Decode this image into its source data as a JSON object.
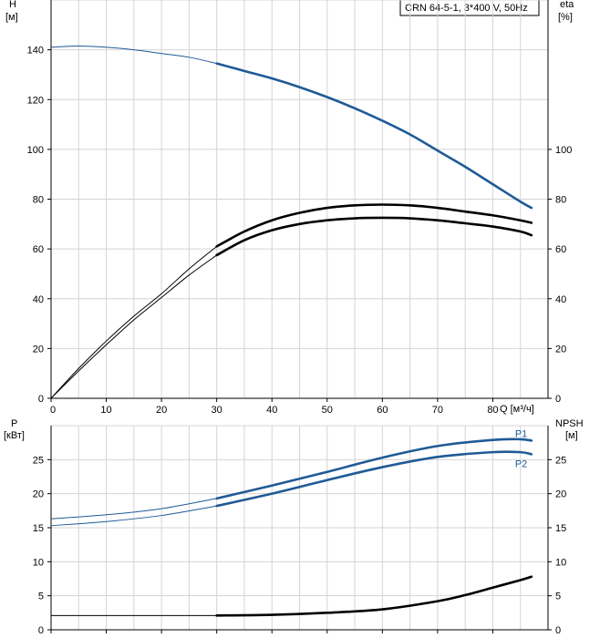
{
  "chart_data": [
    {
      "type": "line",
      "panel": "head-efficiency",
      "title": "CRN 64-5-1, 3*400 V, 50Hz",
      "ylabel_left": [
        "H",
        "[м]"
      ],
      "ylabel_right": [
        "eta",
        "[%]"
      ],
      "xlabel": "Q [м³/ч]",
      "xlim": [
        0,
        90
      ],
      "ylim": [
        0,
        160
      ],
      "x_ticks": [
        0,
        10,
        20,
        30,
        40,
        50,
        60,
        70,
        80
      ],
      "y_ticks_left": [
        0,
        20,
        40,
        60,
        80,
        100,
        120,
        140
      ],
      "y_ticks_right": [
        0,
        20,
        40,
        60,
        80,
        100
      ],
      "grid": true,
      "series": [
        {
          "role": "head",
          "color": "#1f5a96",
          "x": [
            0,
            5,
            10,
            15,
            20,
            25,
            30,
            35,
            40,
            45,
            50,
            55,
            60,
            65,
            70,
            75,
            80,
            85,
            87
          ],
          "y": [
            141,
            141.5,
            141,
            140,
            138.5,
            137,
            134.5,
            131.5,
            128.5,
            125,
            121,
            116.5,
            111.5,
            106,
            99.5,
            93,
            86,
            79,
            76.5
          ],
          "emphasized_from": 30
        },
        {
          "role": "efficiency-upper",
          "color": "#000000",
          "x": [
            0,
            5,
            10,
            15,
            20,
            25,
            30,
            35,
            40,
            45,
            50,
            55,
            60,
            65,
            70,
            75,
            80,
            85,
            87
          ],
          "y": [
            0,
            12,
            23,
            33,
            42,
            52,
            61,
            67,
            71.5,
            74.5,
            76.5,
            77.5,
            77.8,
            77.5,
            76.5,
            75,
            73.5,
            71.5,
            70.5
          ],
          "emphasized_from": 30
        },
        {
          "role": "efficiency",
          "color": "#000000",
          "x": [
            0,
            5,
            10,
            15,
            20,
            25,
            30,
            35,
            40,
            45,
            50,
            55,
            60,
            65,
            70,
            75,
            80,
            85,
            87
          ],
          "y": [
            0,
            11,
            21.5,
            31.5,
            40.5,
            49.5,
            57.5,
            63.5,
            67.5,
            70,
            71.5,
            72.3,
            72.5,
            72.3,
            71.5,
            70.3,
            69,
            67,
            65.5
          ],
          "emphasized_from": 30
        }
      ]
    },
    {
      "type": "line",
      "panel": "power-npsh",
      "ylabel_left": [
        "P",
        "[кВт]"
      ],
      "ylabel_right": [
        "NPSH",
        "[м]"
      ],
      "xlim": [
        0,
        90
      ],
      "ylim": [
        0,
        30
      ],
      "y_ticks_left": [
        0,
        5,
        10,
        15,
        20,
        25
      ],
      "y_ticks_right": [
        0,
        5,
        10,
        15,
        20,
        25
      ],
      "grid": true,
      "series": [
        {
          "name": "P1",
          "color": "#1f5a96",
          "x": [
            0,
            10,
            20,
            30,
            40,
            50,
            60,
            70,
            80,
            85,
            87
          ],
          "y": [
            16.3,
            16.9,
            17.8,
            19.3,
            21.2,
            23.2,
            25.3,
            27.0,
            27.9,
            28.0,
            27.8
          ],
          "emphasized_from": 30
        },
        {
          "name": "P2",
          "color": "#1f5a96",
          "x": [
            0,
            10,
            20,
            30,
            40,
            50,
            60,
            70,
            80,
            85,
            87
          ],
          "y": [
            15.3,
            15.9,
            16.8,
            18.2,
            20.0,
            22.0,
            23.9,
            25.4,
            26.1,
            26.1,
            25.8
          ],
          "emphasized_from": 30
        },
        {
          "role": "npsh",
          "color": "#000000",
          "x": [
            0,
            30,
            40,
            50,
            60,
            70,
            75,
            80,
            85,
            87
          ],
          "y": [
            2.1,
            2.1,
            2.2,
            2.5,
            3.0,
            4.2,
            5.1,
            6.2,
            7.3,
            7.8
          ],
          "emphasized_from": 30
        }
      ]
    }
  ]
}
